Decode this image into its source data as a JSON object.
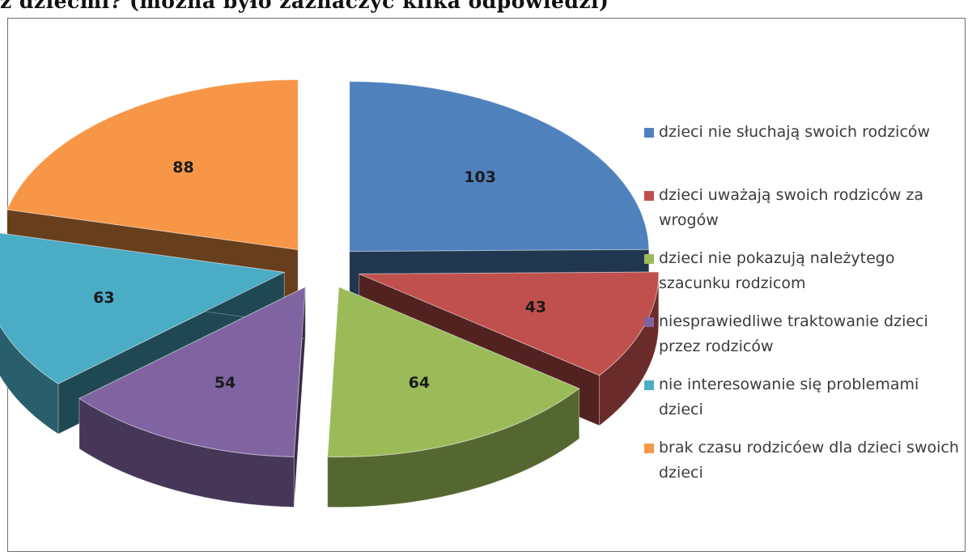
{
  "heading": "z dziećmi? (można było zaznaczyć kilka odpowiedzi)",
  "chart_data": {
    "type": "pie",
    "title": "",
    "style": "3d exploded",
    "legend_position": "right",
    "slices": [
      {
        "label": "dzieci nie słuchają swoich rodziców",
        "value": 103,
        "color": "#4f81bd"
      },
      {
        "label": "dzieci uważają swoich rodziców za wrogów",
        "value": 43,
        "color": "#c0504d"
      },
      {
        "label": "dzieci nie pokazują należytego szacunku rodzicom",
        "value": 64,
        "color": "#9bbb59"
      },
      {
        "label": "niesprawiedliwe traktowanie dzieci przez rodziców",
        "value": 54,
        "color": "#8064a2"
      },
      {
        "label": "nie interesowanie się problemami dzieci",
        "value": 63,
        "color": "#4bacc6"
      },
      {
        "label": "brak czasu rodzicóew dla dzieci swoich dzieci",
        "value": 88,
        "color": "#f79646"
      }
    ]
  }
}
